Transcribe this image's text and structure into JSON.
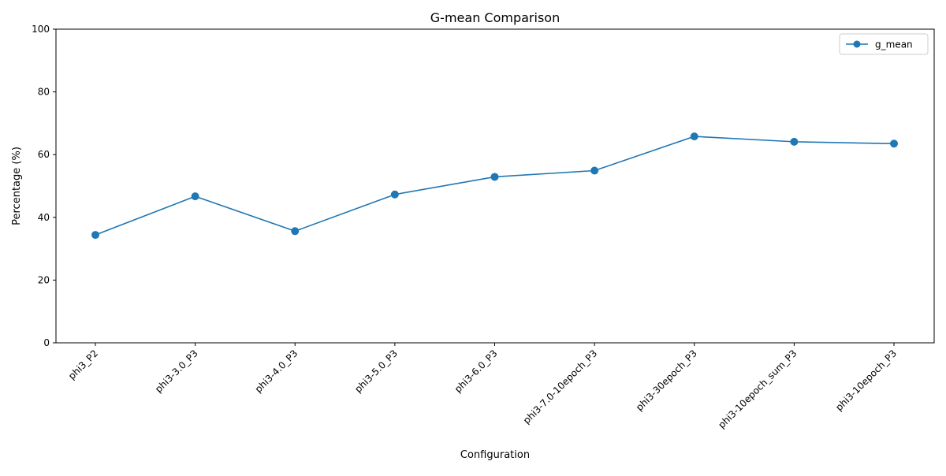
{
  "chart_data": {
    "type": "line",
    "title": "G-mean Comparison",
    "xlabel": "Configuration",
    "ylabel": "Percentage (%)",
    "categories": [
      "phi3_P2",
      "phi3-3.0_P3",
      "phi3-4.0_P3",
      "phi3-5.0_P3",
      "phi3-6.0_P3",
      "phi3-7.0-10epoch_P3",
      "phi3-30epoch_P3",
      "phi3-10epoch_sum_P3",
      "phi3-10epoch_P3"
    ],
    "series": [
      {
        "name": "g_mean",
        "values": [
          34.4,
          46.7,
          35.6,
          47.3,
          52.9,
          54.9,
          65.8,
          64.1,
          63.5
        ],
        "color": "#1f77b4",
        "marker": "circle"
      }
    ],
    "ylim": [
      0,
      100
    ],
    "yticks": [
      0,
      20,
      40,
      60,
      80,
      100
    ],
    "grid": false,
    "legend": "top-right"
  }
}
